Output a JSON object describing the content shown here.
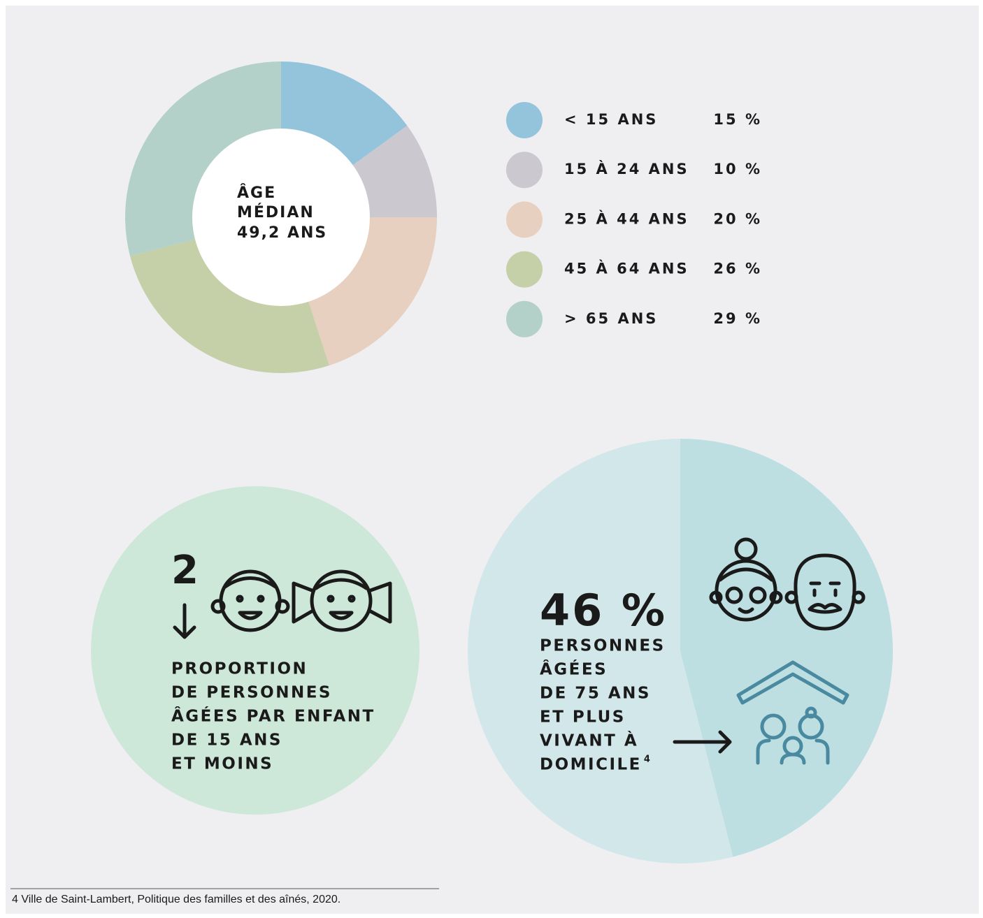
{
  "chart_data": [
    {
      "type": "donut",
      "center_label": [
        "ÂGE",
        "MÉDIAN",
        "49,2 ANS"
      ],
      "categories": [
        "< 15 ANS",
        "15 À 24 ANS",
        "25 À 44 ANS",
        "45 À 64 ANS",
        "> 65 ANS"
      ],
      "values": [
        15,
        10,
        20,
        26,
        29
      ],
      "value_labels": [
        "15 %",
        "10 %",
        "20 %",
        "26 %",
        "29 %"
      ],
      "colors": [
        "#93c4dc",
        "#cbc8d0",
        "#e8d0c0",
        "#c5cfa8",
        "#b3d1c8"
      ]
    },
    {
      "type": "pie",
      "values": [
        46
      ],
      "value_labels": [
        "46 %"
      ],
      "color": "#bddfe1",
      "label_lines": [
        "PERSONNES",
        "ÂGÉES",
        "DE 75 ANS",
        "ET PLUS",
        "VIVANT À",
        "DOMICILE"
      ],
      "footnote_ref": "4"
    }
  ],
  "ratio": {
    "value": 2,
    "lines": [
      "PROPORTION",
      "DE PERSONNES",
      "ÂGÉES PAR ENFANT",
      "DE 15 ANS",
      "ET MOINS"
    ]
  },
  "footnote": "4 Ville de Saint-Lambert, Politique des familles et des aînés, 2020."
}
